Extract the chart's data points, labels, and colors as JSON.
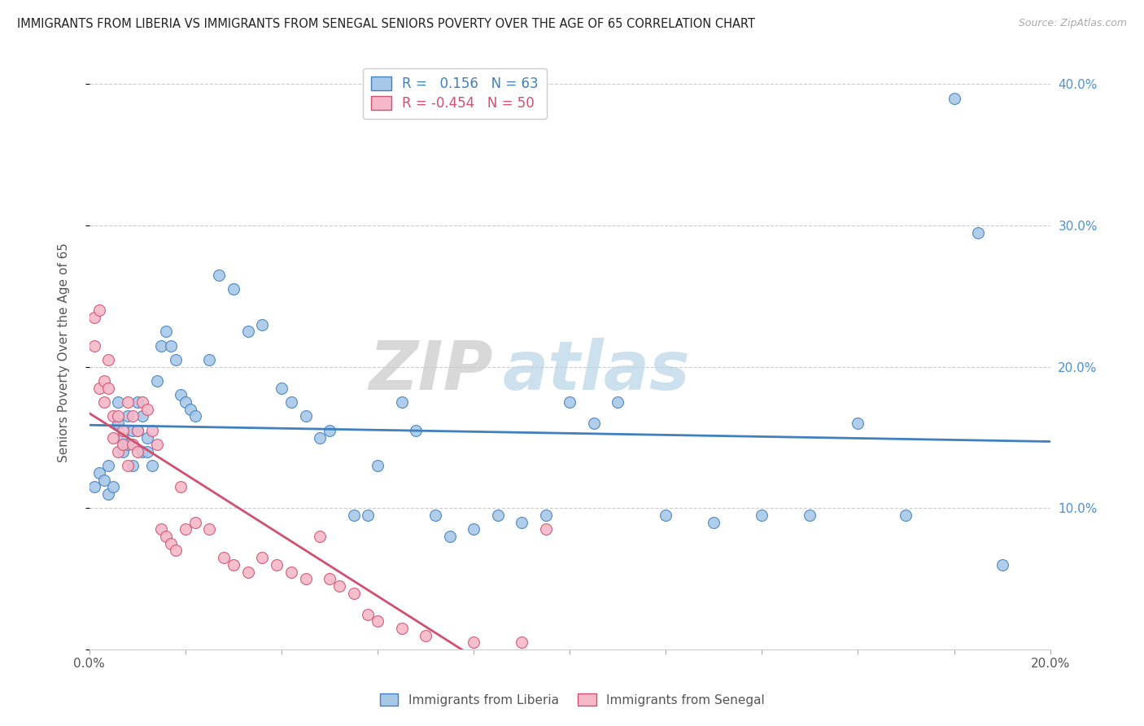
{
  "title": "IMMIGRANTS FROM LIBERIA VS IMMIGRANTS FROM SENEGAL SENIORS POVERTY OVER THE AGE OF 65 CORRELATION CHART",
  "source": "Source: ZipAtlas.com",
  "ylabel": "Seniors Poverty Over the Age of 65",
  "xlim": [
    0.0,
    0.2
  ],
  "ylim": [
    0.0,
    0.42
  ],
  "liberia_color": "#a8c8e8",
  "senegal_color": "#f4b8c8",
  "liberia_R": 0.156,
  "liberia_N": 63,
  "senegal_R": -0.454,
  "senegal_N": 50,
  "liberia_line_color": "#4080c0",
  "senegal_line_color": "#d05070",
  "watermark_zip": "ZIP",
  "watermark_atlas": "atlas",
  "background_color": "#ffffff",
  "grid_color": "#cccccc",
  "liberia_x": [
    0.001,
    0.002,
    0.003,
    0.004,
    0.004,
    0.005,
    0.006,
    0.006,
    0.007,
    0.007,
    0.008,
    0.008,
    0.009,
    0.009,
    0.01,
    0.01,
    0.011,
    0.011,
    0.012,
    0.012,
    0.013,
    0.014,
    0.015,
    0.016,
    0.017,
    0.018,
    0.019,
    0.02,
    0.021,
    0.022,
    0.025,
    0.027,
    0.03,
    0.033,
    0.036,
    0.04,
    0.042,
    0.045,
    0.048,
    0.05,
    0.055,
    0.058,
    0.06,
    0.065,
    0.068,
    0.072,
    0.075,
    0.08,
    0.085,
    0.09,
    0.095,
    0.1,
    0.105,
    0.11,
    0.12,
    0.13,
    0.14,
    0.15,
    0.16,
    0.17,
    0.18,
    0.185,
    0.19
  ],
  "liberia_y": [
    0.115,
    0.125,
    0.12,
    0.13,
    0.11,
    0.115,
    0.175,
    0.16,
    0.15,
    0.14,
    0.145,
    0.165,
    0.13,
    0.155,
    0.175,
    0.155,
    0.14,
    0.165,
    0.15,
    0.14,
    0.13,
    0.19,
    0.215,
    0.225,
    0.215,
    0.205,
    0.18,
    0.175,
    0.17,
    0.165,
    0.205,
    0.265,
    0.255,
    0.225,
    0.23,
    0.185,
    0.175,
    0.165,
    0.15,
    0.155,
    0.095,
    0.095,
    0.13,
    0.175,
    0.155,
    0.095,
    0.08,
    0.085,
    0.095,
    0.09,
    0.095,
    0.175,
    0.16,
    0.175,
    0.095,
    0.09,
    0.095,
    0.095,
    0.16,
    0.095,
    0.39,
    0.295,
    0.06
  ],
  "senegal_x": [
    0.001,
    0.001,
    0.002,
    0.002,
    0.003,
    0.003,
    0.004,
    0.004,
    0.005,
    0.005,
    0.006,
    0.006,
    0.007,
    0.007,
    0.008,
    0.008,
    0.009,
    0.009,
    0.01,
    0.01,
    0.011,
    0.012,
    0.013,
    0.014,
    0.015,
    0.016,
    0.017,
    0.018,
    0.019,
    0.02,
    0.022,
    0.025,
    0.028,
    0.03,
    0.033,
    0.036,
    0.039,
    0.042,
    0.045,
    0.048,
    0.05,
    0.052,
    0.055,
    0.058,
    0.06,
    0.065,
    0.07,
    0.08,
    0.09,
    0.095
  ],
  "senegal_y": [
    0.235,
    0.215,
    0.24,
    0.185,
    0.19,
    0.175,
    0.205,
    0.185,
    0.165,
    0.15,
    0.14,
    0.165,
    0.155,
    0.145,
    0.175,
    0.13,
    0.165,
    0.145,
    0.155,
    0.14,
    0.175,
    0.17,
    0.155,
    0.145,
    0.085,
    0.08,
    0.075,
    0.07,
    0.115,
    0.085,
    0.09,
    0.085,
    0.065,
    0.06,
    0.055,
    0.065,
    0.06,
    0.055,
    0.05,
    0.08,
    0.05,
    0.045,
    0.04,
    0.025,
    0.02,
    0.015,
    0.01,
    0.005,
    0.005,
    0.085
  ]
}
